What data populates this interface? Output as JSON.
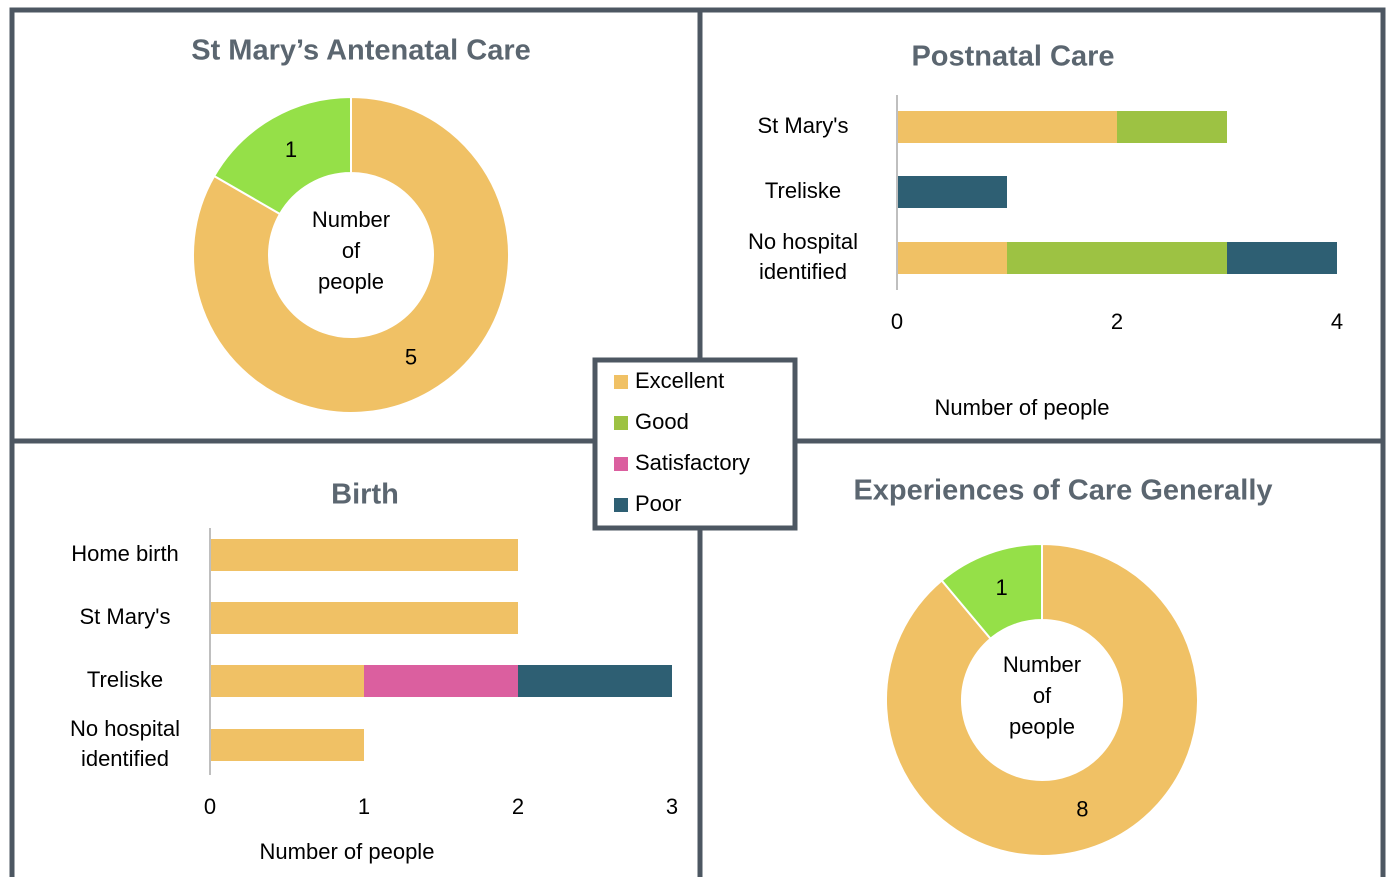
{
  "chart_data": [
    {
      "type": "donut",
      "title": "St Mary’s Antenatal Care",
      "center_label": "Number of people",
      "values": [
        5,
        1
      ],
      "colors": [
        "#f0c165",
        "#95e048"
      ]
    },
    {
      "type": "bar",
      "title": "Postnatal Care",
      "orientation": "horizontal",
      "stacked": true,
      "categories": [
        "St Mary's",
        "Treliske",
        "No hospital identified"
      ],
      "series": [
        {
          "color": "#f0c165",
          "values": [
            2,
            0,
            1
          ]
        },
        {
          "color": "#9dc243",
          "values": [
            1,
            0,
            2
          ]
        },
        {
          "color": "#2e5f73",
          "values": [
            0,
            1,
            1
          ]
        }
      ],
      "xlim": [
        0,
        4
      ],
      "xticks": [
        0,
        2,
        4
      ],
      "xlabel": "Number of people"
    },
    {
      "type": "bar",
      "title": "Birth",
      "orientation": "horizontal",
      "stacked": true,
      "categories": [
        "Home birth",
        "St Mary's",
        "Treliske",
        "No hospital identified"
      ],
      "series": [
        {
          "name": "Excellent",
          "color": "#f0c165",
          "values": [
            2,
            2,
            1,
            1
          ]
        },
        {
          "name": "Good",
          "color": "#9dc243",
          "values": [
            0,
            0,
            0,
            0
          ]
        },
        {
          "name": "Satisfactory",
          "color": "#db5f9f",
          "values": [
            0,
            0,
            1,
            0
          ]
        },
        {
          "name": "Poor",
          "color": "#2e5f73",
          "values": [
            0,
            0,
            1,
            0
          ]
        }
      ],
      "xlim": [
        0,
        3
      ],
      "xticks": [
        0,
        1,
        2,
        3
      ],
      "xlabel": "Number of people"
    },
    {
      "type": "donut",
      "title": "Experiences of Care Generally",
      "center_label": "Number of people",
      "values": [
        8,
        1
      ],
      "colors": [
        "#f0c165",
        "#95e048"
      ]
    }
  ]
}
